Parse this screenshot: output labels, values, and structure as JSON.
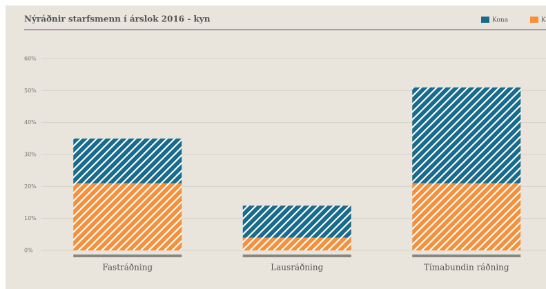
{
  "chart_data": {
    "type": "stacked_bar",
    "title": "Nýráðnir starfsmenn í árslok 2016 - kyn",
    "categories": [
      "Fastráðning",
      "Lausráðning",
      "Tímabundin ráðning"
    ],
    "series": [
      {
        "name": "Karl",
        "color": "#f7903c",
        "values": [
          21,
          4,
          21
        ]
      },
      {
        "name": "Kona",
        "color": "#186b8d",
        "values": [
          14,
          10,
          30
        ]
      }
    ],
    "legend_order": [
      "Kona",
      "Karl"
    ],
    "legend": "top-right",
    "ylim": [
      0,
      60
    ],
    "yticks": [
      {
        "value": 0,
        "label": "0%"
      },
      {
        "value": 10,
        "label": "10%"
      },
      {
        "value": 20,
        "label": "20%"
      },
      {
        "value": 30,
        "label": "30%"
      },
      {
        "value": 40,
        "label": "40%"
      },
      {
        "value": 50,
        "label": "50%"
      },
      {
        "value": 60,
        "label": "60%"
      }
    ],
    "grid": true,
    "hatch": true
  }
}
